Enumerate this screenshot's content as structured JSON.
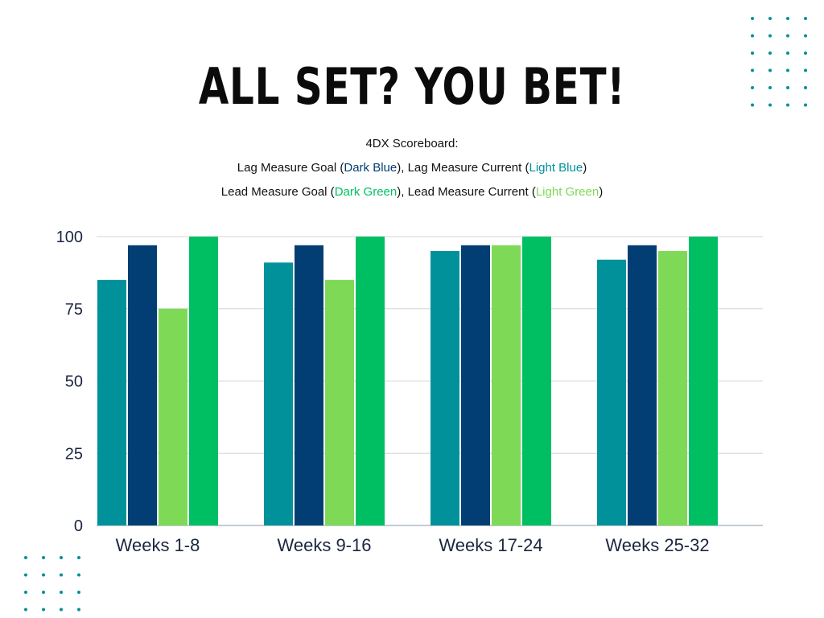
{
  "title": "ALL SET? YOU BET!",
  "subtitle": {
    "line1": "4DX Scoreboard:",
    "lag_goal": "Lag Measure Goal",
    "lag_goal_color_word": "Dark Blue",
    "lag_current": "Lag Measure Current",
    "lag_current_color_word": "Light Blue",
    "lead_goal": "Lead Measure Goal",
    "lead_goal_color_word": "Dark Green",
    "lead_current": "Lead Measure Current",
    "lead_current_color_word": "Light Green"
  },
  "colors": {
    "dark_blue": "#023e73",
    "light_blue": "#00919a",
    "light_green": "#7ed957",
    "dark_green": "#00bf63",
    "dots": "#00919a"
  },
  "chart_data": {
    "type": "bar",
    "categories": [
      "Weeks 1-8",
      "Weeks 9-16",
      "Weeks 17-24",
      "Weeks 25-32"
    ],
    "series": [
      {
        "values": [
          85,
          91,
          95,
          92
        ],
        "color": "#00919a"
      },
      {
        "values": [
          97,
          97,
          97,
          97
        ],
        "color": "#023e73"
      },
      {
        "values": [
          75,
          85,
          97,
          95
        ],
        "color": "#7ed957"
      },
      {
        "values": [
          100,
          100,
          100,
          100
        ],
        "color": "#00bf63"
      }
    ],
    "ylim": [
      0,
      100
    ],
    "yticks": [
      "0",
      "25",
      "50",
      "75",
      "100"
    ],
    "grid": true,
    "legend": "none"
  }
}
